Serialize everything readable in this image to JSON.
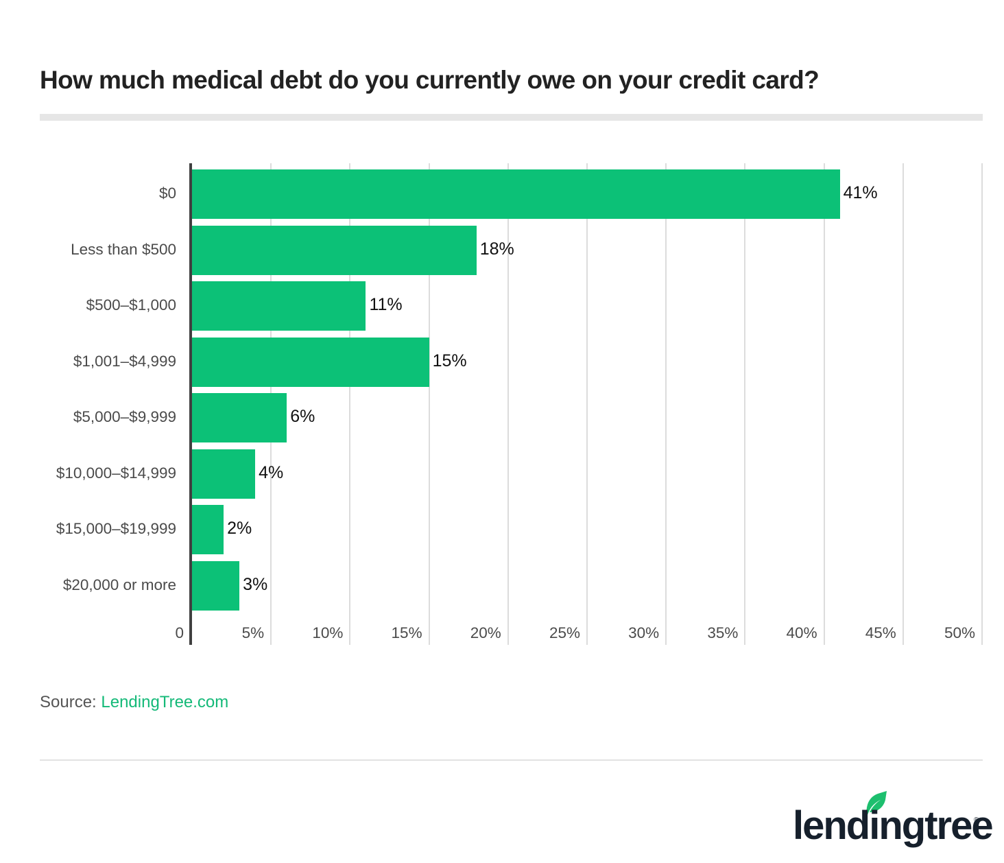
{
  "header": {
    "title": "How much medical debt do you currently owe on your credit card?"
  },
  "footer": {
    "source_label": "Source:",
    "source_link": "LendingTree.com",
    "logo_text": "lendingtree",
    "logo_reg": "®",
    "logo_icon": "leaf-icon"
  },
  "colors": {
    "bar": "#0cc177",
    "source_link": "#14b978",
    "axis": "#404040",
    "grid": "#dcdcdc",
    "title": "#222222"
  },
  "chart_data": {
    "type": "bar",
    "orientation": "horizontal",
    "title": "How much medical debt do you currently owe on your credit card?",
    "xlabel": "",
    "ylabel": "",
    "xlim": [
      0,
      50
    ],
    "grid": true,
    "legend": null,
    "categories": [
      "$0",
      "Less than $500",
      "$500–$1,000",
      "$1,001–$4,999",
      "$5,000–$9,999",
      "$10,000–$14,999",
      "$15,000–$19,999",
      "$20,000 or more"
    ],
    "values": [
      41,
      18,
      11,
      15,
      6,
      4,
      2,
      3
    ],
    "value_labels": [
      "41%",
      "18%",
      "11%",
      "15%",
      "6%",
      "4%",
      "2%",
      "3%"
    ],
    "x_ticks": [
      0,
      5,
      10,
      15,
      20,
      25,
      30,
      35,
      40,
      45,
      50
    ],
    "x_tick_labels": [
      "0",
      "5%",
      "10%",
      "15%",
      "20%",
      "25%",
      "30%",
      "35%",
      "40%",
      "45%",
      "50%"
    ],
    "source": "Source: LendingTree.com"
  }
}
